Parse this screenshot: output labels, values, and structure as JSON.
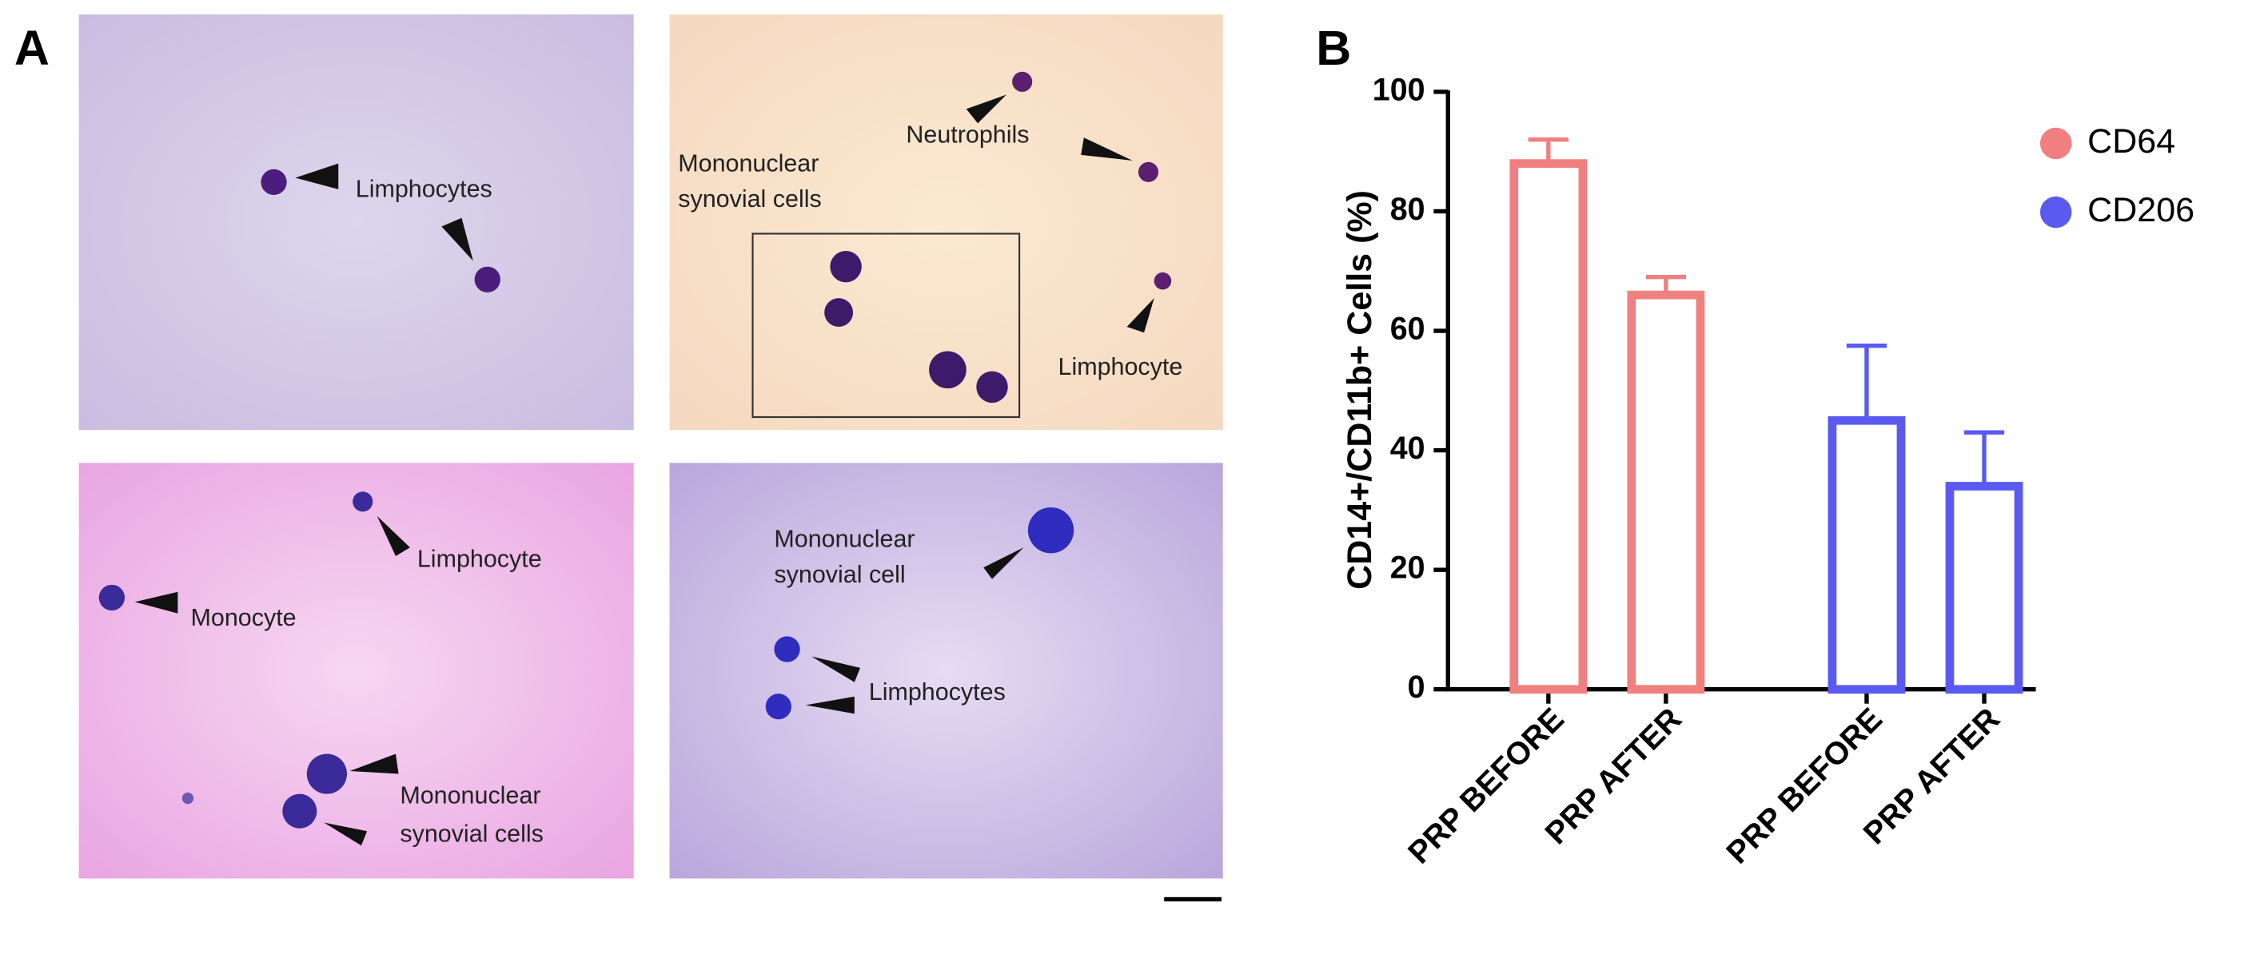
{
  "panel_a": {
    "letter": "A",
    "panels": [
      {
        "labels": [
          [
            "Limphocytes"
          ]
        ]
      },
      {
        "labels": [
          [
            "Neutrophils"
          ],
          [
            "Mononuclear",
            "synovial cells"
          ],
          [
            "Limphocyte"
          ]
        ]
      },
      {
        "labels": [
          [
            "Limphocyte"
          ],
          [
            "Monocyte"
          ],
          [
            "Mononuclear",
            "synovial cells"
          ]
        ]
      },
      {
        "labels": [
          [
            "Mononuclear",
            "synovial cell"
          ],
          [
            "Limphocytes"
          ]
        ]
      }
    ]
  },
  "chart_data": {
    "type": "bar",
    "letter": "B",
    "y_label": "CD14+/CD11b+ Cells (%)",
    "categories": [
      "PRP BEFORE",
      "PRP AFTER",
      "PRP BEFORE",
      "PRP AFTER"
    ],
    "series": [
      {
        "name": "CD64",
        "color": "#f08080",
        "values": [
          88,
          66,
          null,
          null
        ],
        "errors": [
          4,
          3,
          null,
          null
        ]
      },
      {
        "name": "CD206",
        "color": "#5a5af0",
        "values": [
          null,
          null,
          45,
          34
        ],
        "errors": [
          null,
          null,
          12.5,
          9
        ]
      }
    ],
    "ylim": [
      0,
      100
    ],
    "yticks": [
      0,
      20,
      40,
      60,
      80,
      100
    ],
    "legend": "upper right"
  }
}
